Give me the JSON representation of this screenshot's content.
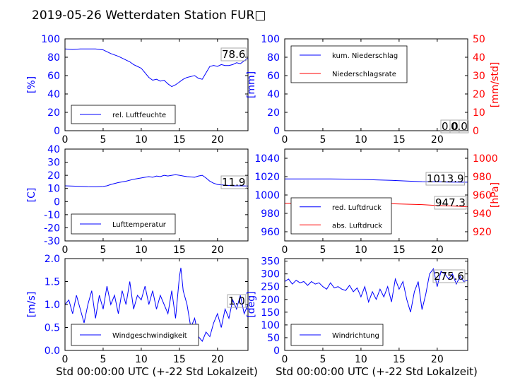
{
  "title": "2019-05-26 Wetterdaten Station FUR□",
  "xlabel": "Std 00:00:00 UTC (+-22 Std Lokalzeit)",
  "colors": {
    "left_axis": "#0000ff",
    "right_axis": "#ff0000",
    "series_blue": "#0000ff",
    "series_red": "#ff0000"
  },
  "chart_data": [
    {
      "id": "humidity",
      "type": "line",
      "ylabel": "[%]",
      "xlim": [
        0,
        24
      ],
      "ylim": [
        0,
        100
      ],
      "xticks": [
        0,
        5,
        10,
        15,
        20
      ],
      "yticks": [
        0,
        20,
        40,
        60,
        80,
        100
      ],
      "legend_position": "lower-left",
      "annotation": "78.6",
      "series": [
        {
          "name": "rel. Luftfeuchte",
          "color": "#0000ff",
          "axis": "left",
          "x": [
            0,
            1,
            2,
            3,
            4,
            5,
            5.5,
            6,
            7,
            7.5,
            8,
            8.5,
            9,
            9.5,
            10,
            10.5,
            11,
            11.5,
            12,
            12.5,
            13,
            13.5,
            14,
            14.5,
            15,
            15.5,
            16,
            16.5,
            17,
            17.5,
            18,
            18.5,
            19,
            19.5,
            20,
            20.5,
            21,
            21.5,
            22,
            22.5,
            23,
            23.5,
            24
          ],
          "y": [
            89,
            88.5,
            89,
            89,
            89,
            88,
            86,
            84,
            81,
            79,
            77,
            75,
            72,
            70,
            68,
            63,
            58,
            55,
            56,
            54,
            55,
            51,
            48,
            50,
            53,
            56,
            58,
            59,
            60,
            57,
            56,
            63,
            70,
            71,
            70,
            72,
            71,
            71,
            72,
            74,
            73,
            76,
            79
          ]
        }
      ]
    },
    {
      "id": "precip",
      "type": "line",
      "ylabel": "[mm]",
      "ylabel_right": "[mm/std]",
      "xlim": [
        0,
        24
      ],
      "ylim": [
        0,
        100
      ],
      "ylim_right": [
        0,
        50
      ],
      "xticks": [
        0,
        5,
        10,
        15,
        20
      ],
      "yticks": [
        0,
        20,
        40,
        60,
        80,
        100
      ],
      "yticks_right": [
        0,
        10,
        20,
        30,
        40,
        50
      ],
      "legend_position": "upper-left",
      "annotation": "0.0",
      "annotation2": "0.0",
      "series": [
        {
          "name": "kum. Niederschlag",
          "color": "#0000ff",
          "axis": "left",
          "x": [
            0,
            24
          ],
          "y": [
            0,
            0
          ]
        },
        {
          "name": "Niederschlagsrate",
          "color": "#ff0000",
          "axis": "right",
          "x": [
            0,
            24
          ],
          "y": [
            0,
            0
          ]
        }
      ]
    },
    {
      "id": "temperature",
      "type": "line",
      "ylabel": "[C]",
      "xlim": [
        0,
        24
      ],
      "ylim": [
        -30,
        40
      ],
      "xticks": [
        0,
        5,
        10,
        15,
        20
      ],
      "yticks": [
        -30,
        -20,
        -10,
        0,
        10,
        20,
        30,
        40
      ],
      "legend_position": "lower-left",
      "annotation": "11.9",
      "series": [
        {
          "name": "Lufttemperatur",
          "color": "#0000ff",
          "axis": "left",
          "x": [
            0,
            1,
            2,
            3,
            4,
            5,
            5.5,
            6,
            7,
            8,
            9,
            10,
            10.5,
            11,
            11.5,
            12,
            12.5,
            13,
            13.5,
            14,
            14.5,
            15,
            15.5,
            16,
            17,
            17.5,
            18,
            18.5,
            19,
            19.5,
            20,
            21,
            22,
            23,
            24
          ],
          "y": [
            12,
            11.8,
            11.6,
            11.3,
            11.2,
            11.5,
            12,
            13,
            14.5,
            15.5,
            17,
            18,
            18.5,
            19,
            18.5,
            19.5,
            19,
            20,
            19.5,
            20,
            20.5,
            20,
            19.5,
            19,
            18.5,
            19.5,
            20,
            18,
            15.5,
            14,
            13,
            12.5,
            12,
            12,
            11.9
          ]
        }
      ]
    },
    {
      "id": "pressure",
      "type": "line",
      "ylabel": "",
      "ylabel_right": "[hPa]",
      "xlim": [
        0,
        24
      ],
      "ylim": [
        950,
        1050
      ],
      "ylim_right": [
        910,
        1010
      ],
      "xticks": [
        0,
        5,
        10,
        15,
        20
      ],
      "yticks": [
        960,
        980,
        1000,
        1020,
        1040
      ],
      "yticks_right": [
        920,
        940,
        960,
        980,
        1000
      ],
      "legend_position": "lower-left",
      "annotation": "1013.9",
      "annotation2": "947.3",
      "series": [
        {
          "name": "red. Luftdruck",
          "color": "#0000ff",
          "axis": "left",
          "x": [
            0,
            2,
            4,
            6,
            8,
            10,
            12,
            14,
            16,
            18,
            20,
            22,
            24
          ],
          "y": [
            1017.5,
            1017.5,
            1017.5,
            1017.5,
            1017.3,
            1017,
            1016.5,
            1016,
            1015.2,
            1014.5,
            1014.3,
            1014,
            1013.9
          ]
        },
        {
          "name": "abs. Luftdruck",
          "color": "#ff0000",
          "axis": "right",
          "x": [
            0,
            2,
            4,
            6,
            8,
            10,
            12,
            14,
            16,
            18,
            20,
            22,
            24
          ],
          "y": [
            951,
            951,
            951.2,
            951.5,
            951.5,
            951.5,
            951,
            950.5,
            950,
            949.5,
            948.5,
            948,
            947.3
          ]
        }
      ]
    },
    {
      "id": "windspeed",
      "type": "line",
      "ylabel": "[m/s]",
      "xlim": [
        0,
        24
      ],
      "ylim": [
        0,
        2
      ],
      "xticks": [
        0,
        5,
        10,
        15,
        20
      ],
      "yticks": [
        0.0,
        0.5,
        1.0,
        1.5,
        2.0
      ],
      "legend_position": "lower-left",
      "annotation": "1.0",
      "series": [
        {
          "name": "Windgeschwindigkeit",
          "color": "#0000ff",
          "axis": "left",
          "x": [
            0,
            0.5,
            1,
            1.5,
            2,
            2.5,
            3,
            3.5,
            4,
            4.5,
            5,
            5.5,
            6,
            6.5,
            7,
            7.5,
            8,
            8.5,
            9,
            9.5,
            10,
            10.5,
            11,
            11.5,
            12,
            12.5,
            13,
            13.5,
            14,
            14.5,
            15,
            15.2,
            15.5,
            16,
            16.5,
            17,
            17.5,
            18,
            18.5,
            19,
            19.5,
            20,
            20.5,
            21,
            21.5,
            22,
            22.5,
            23,
            23.5,
            24
          ],
          "y": [
            1.0,
            1.1,
            0.8,
            1.2,
            0.9,
            0.6,
            1.0,
            1.3,
            0.7,
            1.2,
            0.9,
            1.4,
            1.0,
            1.2,
            0.8,
            1.3,
            1.0,
            1.5,
            0.9,
            1.2,
            1.1,
            1.4,
            1.0,
            1.3,
            0.9,
            1.2,
            1.0,
            0.8,
            1.3,
            0.7,
            1.6,
            1.8,
            1.3,
            1.0,
            0.5,
            0.7,
            0.3,
            0.2,
            0.4,
            0.3,
            0.6,
            0.8,
            0.5,
            0.9,
            0.7,
            1.1,
            0.9,
            1.2,
            0.8,
            1.0
          ]
        }
      ]
    },
    {
      "id": "winddir",
      "type": "line",
      "ylabel": "[deg]",
      "xlim": [
        0,
        24
      ],
      "ylim": [
        0,
        360
      ],
      "xticks": [
        0,
        5,
        10,
        15,
        20
      ],
      "yticks": [
        0,
        50,
        100,
        150,
        200,
        250,
        300,
        350
      ],
      "legend_position": "lower-left",
      "annotation": "275.6",
      "series": [
        {
          "name": "Windrichtung",
          "color": "#0000ff",
          "axis": "left",
          "x": [
            0,
            0.5,
            1,
            1.5,
            2,
            2.5,
            3,
            3.5,
            4,
            4.5,
            5,
            5.5,
            6,
            6.5,
            7,
            7.5,
            8,
            8.5,
            9,
            9.5,
            10,
            10.5,
            11,
            11.5,
            12,
            12.5,
            13,
            13.5,
            14,
            14.5,
            15,
            15.5,
            16,
            16.5,
            17,
            17.5,
            18,
            18.5,
            19,
            19.5,
            20,
            20.5,
            21,
            21.5,
            22,
            22.5,
            23,
            23.5,
            24
          ],
          "y": [
            270,
            280,
            260,
            275,
            265,
            270,
            255,
            270,
            260,
            265,
            250,
            240,
            265,
            245,
            250,
            240,
            235,
            255,
            230,
            245,
            210,
            250,
            190,
            230,
            200,
            240,
            210,
            250,
            190,
            280,
            240,
            270,
            200,
            150,
            230,
            270,
            160,
            220,
            300,
            320,
            250,
            310,
            300,
            280,
            300,
            260,
            290,
            270,
            275.6
          ]
        }
      ]
    }
  ]
}
